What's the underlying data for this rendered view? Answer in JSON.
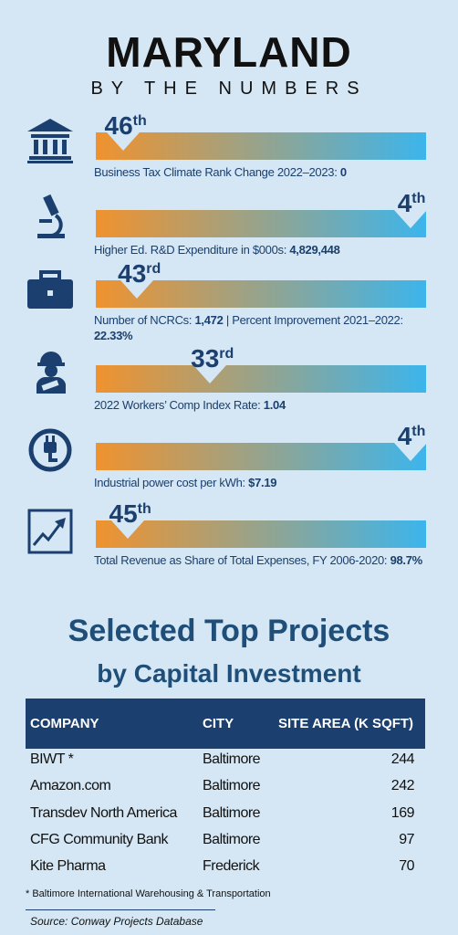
{
  "header": {
    "title": "MARYLAND",
    "subtitle": "BY THE NUMBERS"
  },
  "metrics": [
    {
      "rank": 46,
      "suffix": "th",
      "parts": [
        {
          "text": "Business Tax Climate Rank Change 2022–2023:",
          "bold": false
        },
        {
          "text": "0",
          "bold": true
        }
      ]
    },
    {
      "rank": 4,
      "suffix": "th",
      "parts": [
        {
          "text": "Higher Ed. R&D Expenditure in $000s:",
          "bold": false
        },
        {
          "text": "4,829,448",
          "bold": true
        }
      ]
    },
    {
      "rank": 43,
      "suffix": "rd",
      "parts": [
        {
          "text": "Number of NCRCs:",
          "bold": false
        },
        {
          "text": "1,472",
          "bold": true
        },
        {
          "text": "| Percent Improvement 2021–2022:",
          "bold": false
        },
        {
          "text": "22.33%",
          "bold": true
        }
      ]
    },
    {
      "rank": 33,
      "suffix": "rd",
      "parts": [
        {
          "text": "2022 Workers’ Comp Index Rate:",
          "bold": false
        },
        {
          "text": "1.04",
          "bold": true
        }
      ]
    },
    {
      "rank": 4,
      "suffix": "th",
      "parts": [
        {
          "text": "Industrial power cost per kWh:",
          "bold": false
        },
        {
          "text": "$7.19",
          "bold": true
        }
      ]
    },
    {
      "rank": 45,
      "suffix": "th",
      "parts": [
        {
          "text": "Total Revenue as Share of Total Expenses, FY 2006-2020:",
          "bold": false
        },
        {
          "text": "98.7%",
          "bold": true
        }
      ]
    }
  ],
  "projects": {
    "title": "Selected Top Projects",
    "subtitle": "by Capital Investment",
    "table": {
      "columns": [
        "COMPANY",
        "CITY",
        "SITE AREA (K SQFT)"
      ],
      "rows": [
        [
          "BIWT *",
          "Baltimore",
          244
        ],
        [
          "Amazon.com",
          "Baltimore",
          242
        ],
        [
          "Transdev North America",
          "Baltimore",
          169
        ],
        [
          "CFG Community Bank",
          "Baltimore",
          97
        ],
        [
          "Kite Pharma",
          "Frederick",
          70
        ]
      ]
    },
    "footnote": "* Baltimore International Warehousing & Transportation",
    "source": "Source: Conway Projects Database"
  }
}
